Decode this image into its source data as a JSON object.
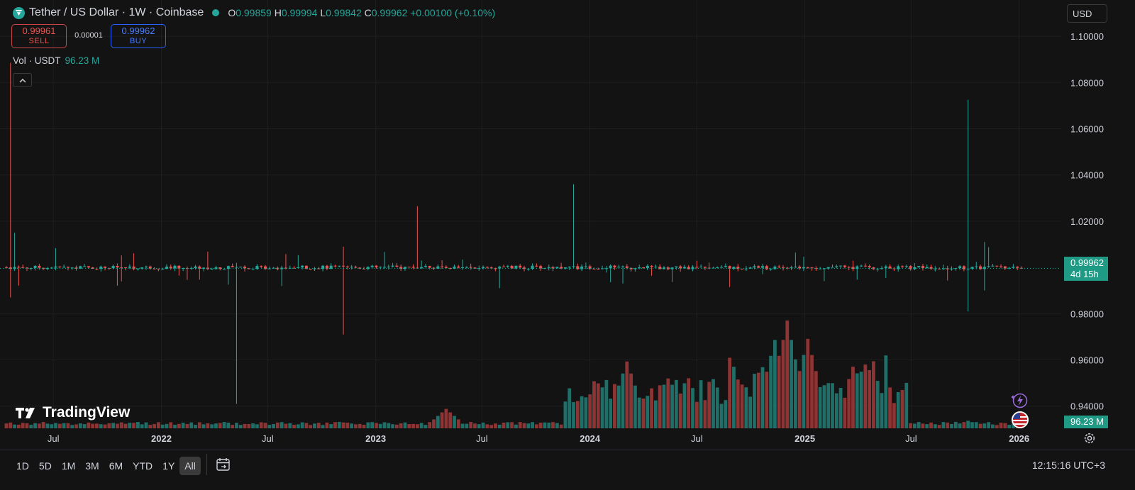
{
  "header": {
    "title": "Tether / US Dollar · 1W · Coinbase",
    "open_label": "O",
    "open": "0.99859",
    "high_label": "H",
    "high": "0.99994",
    "low_label": "L",
    "low": "0.99842",
    "close_label": "C",
    "close": "0.99962",
    "change": "+0.00100 (+0.10%)"
  },
  "trade": {
    "sell_price": "0.99961",
    "sell_label": "SELL",
    "spread": "0.00001",
    "buy_price": "0.99962",
    "buy_label": "BUY"
  },
  "volume_legend": {
    "label": "Vol · USDT",
    "value": "96.23 M"
  },
  "currency": "USD",
  "price_tag": {
    "price": "0.99962",
    "countdown": "4d 15h"
  },
  "volume_tag": "96.23 M",
  "brand": "TradingView",
  "ranges": [
    "1D",
    "5D",
    "1M",
    "3M",
    "6M",
    "YTD",
    "1Y",
    "All"
  ],
  "active_range": "All",
  "clock": "12:15:16 UTC+3",
  "icons": {
    "symbol": "tether-diamond-icon",
    "status": "market-open-dot-icon",
    "collapse": "chevron-up-icon",
    "calendar": "calendar-goto-icon",
    "settings": "gear-icon",
    "alert": "lightning-icon",
    "region": "us-flag-icon"
  },
  "colors": {
    "up": "#26a69a",
    "down": "#ef5350",
    "background": "#131313",
    "buy": "#2962ff",
    "tag": "#1e9a85"
  },
  "chart_data": {
    "type": "candlestick",
    "interval": "1W",
    "price_axis": {
      "ticks": [
        1.1,
        1.08,
        1.06,
        1.04,
        1.02,
        0.98,
        0.96,
        0.94
      ],
      "ylim": [
        0.9304,
        1.1022
      ]
    },
    "time_axis": [
      {
        "label": "Jul",
        "date": "2021-07",
        "bold": false
      },
      {
        "label": "2022",
        "date": "2022-01",
        "bold": true
      },
      {
        "label": "Jul",
        "date": "2022-07",
        "bold": false
      },
      {
        "label": "2023",
        "date": "2023-01",
        "bold": true
      },
      {
        "label": "Jul",
        "date": "2023-07",
        "bold": false
      },
      {
        "label": "2024",
        "date": "2024-01",
        "bold": true
      },
      {
        "label": "Jul",
        "date": "2024-07",
        "bold": false
      },
      {
        "label": "2025",
        "date": "2025-01",
        "bold": true
      },
      {
        "label": "Jul",
        "date": "2025-07",
        "bold": false
      },
      {
        "label": "2026",
        "date": "2026-01",
        "bold": true
      }
    ],
    "x_range": [
      "2021-04-12",
      "2026-01-05"
    ],
    "last_price": 0.99962,
    "notable_wicks": [
      {
        "date": "2021-04-19",
        "high": 1.0885,
        "low": 0.987
      },
      {
        "date": "2021-04-26",
        "high": 1.015,
        "low": 0.9985
      },
      {
        "date": "2022-05-09",
        "high": 1.002,
        "low": 0.941
      },
      {
        "date": "2022-11-07",
        "high": 1.009,
        "low": 0.971
      },
      {
        "date": "2023-03-13",
        "high": 1.0265,
        "low": 0.9995
      },
      {
        "date": "2023-12-04",
        "high": 1.036,
        "low": 0.9995
      },
      {
        "date": "2025-10-06",
        "high": 1.0725,
        "low": 0.981
      },
      {
        "date": "2025-11-03",
        "high": 1.011,
        "low": 0.99
      }
    ],
    "volume_peaks": [
      {
        "date": "2023-05-01",
        "volume_rel": 0.18
      },
      {
        "date": "2024-03-04",
        "volume_rel": 0.62
      },
      {
        "date": "2024-11-11",
        "volume_rel": 0.82
      },
      {
        "date": "2024-12-02",
        "volume_rel": 1.0
      },
      {
        "date": "2025-01-06",
        "volume_rel": 0.83
      },
      {
        "date": "2025-04-21",
        "volume_rel": 0.54
      },
      {
        "date": "2025-10-06",
        "volume_rel": 0.07
      }
    ]
  }
}
